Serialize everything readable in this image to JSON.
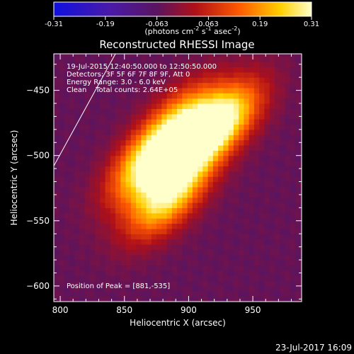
{
  "colorbar": {
    "ticks": [
      "-0.31",
      "-0.19",
      "-0.063",
      "0.063",
      "0.19",
      "0.31"
    ],
    "units_text": "(photons cm",
    "units_exp1": "-2",
    "units_mid": " s",
    "units_exp2": "-1",
    "units_end": " asec",
    "units_exp3": "-2",
    "units_close": ")"
  },
  "chart_data": {
    "type": "heatmap",
    "title": "Reconstructed RHESSI Image",
    "xlabel": "Heliocentric X (arcsec)",
    "ylabel": "Heliocentric Y (arcsec)",
    "xlim": [
      795,
      988
    ],
    "ylim": [
      -612,
      -422
    ],
    "xticks": [
      800,
      850,
      900,
      950
    ],
    "yticks": [
      -450,
      -500,
      -550,
      -600
    ],
    "color_range": [
      -0.31,
      0.31
    ],
    "colormap": "rainbow-to-hot",
    "info_lines": [
      "19-Jul-2015 12:40:50.000 to 12:50:50.000",
      "Detectors: 3F 5F 6F 7F 8F 9F, Att 0",
      "Energy Range: 3.0 - 6.0 keV",
      "Clean    Total counts: 2.64E+05"
    ],
    "peak_label": "Position of Peak = [881,-535]",
    "peak": [
      881,
      -535
    ],
    "sources": [
      {
        "x": 868,
        "y": -505,
        "amp": 0.3
      },
      {
        "x": 884,
        "y": -532,
        "amp": 0.31
      },
      {
        "x": 903,
        "y": -490,
        "amp": 0.28
      },
      {
        "x": 928,
        "y": -473,
        "amp": 0.27
      },
      {
        "x": 893,
        "y": -470,
        "amp": 0.18
      }
    ],
    "limb_line": {
      "from": [
        795,
        -508
      ],
      "to": [
        843,
        -422
      ]
    }
  },
  "timestamp": "23-Jul-2017 16:09"
}
